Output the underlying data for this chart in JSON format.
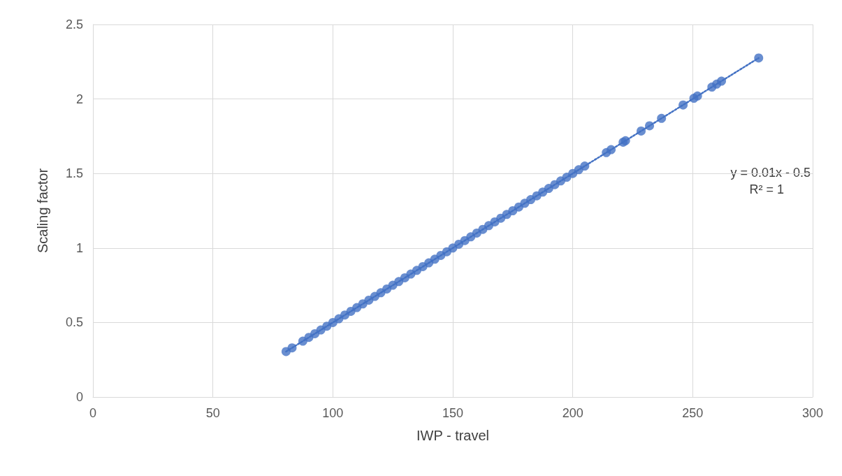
{
  "chart_data": {
    "type": "scatter",
    "xlabel": "IWP - travel",
    "ylabel": "Scaling factor",
    "xlim": [
      0,
      300
    ],
    "xticks": [
      0,
      50,
      100,
      150,
      200,
      250,
      300
    ],
    "ylim": [
      0,
      2.5
    ],
    "yticks": [
      0,
      0.5,
      1,
      1.5,
      2,
      2.5
    ],
    "grid": true,
    "annotations": [
      "y = 0.01x - 0.5",
      "R² = 1"
    ],
    "series": [
      {
        "color": "#4472c4",
        "marker": "circle",
        "x": [
          80.5,
          83,
          87.5,
          90,
          92.5,
          95,
          97.5,
          100,
          102.5,
          105,
          107.5,
          110,
          112.5,
          115,
          117.5,
          120,
          122.5,
          125,
          127.5,
          130,
          132.5,
          135,
          137.5,
          140,
          142.5,
          145,
          147.5,
          150,
          152.5,
          155,
          157.5,
          160,
          162.5,
          165,
          167.5,
          170,
          172.5,
          175,
          177.5,
          180,
          182.5,
          185,
          187.5,
          190,
          192.5,
          195,
          197.5,
          200,
          202.5,
          205,
          214,
          216,
          221,
          222,
          228.5,
          232,
          237,
          246,
          250.5,
          252,
          258,
          260,
          262,
          277.5
        ],
        "values": [
          0.305,
          0.33,
          0.375,
          0.4,
          0.425,
          0.45,
          0.475,
          0.5,
          0.525,
          0.55,
          0.575,
          0.6,
          0.625,
          0.65,
          0.675,
          0.7,
          0.725,
          0.75,
          0.775,
          0.8,
          0.825,
          0.85,
          0.875,
          0.9,
          0.925,
          0.95,
          0.975,
          1,
          1.025,
          1.05,
          1.075,
          1.1,
          1.125,
          1.15,
          1.175,
          1.2,
          1.225,
          1.25,
          1.275,
          1.3,
          1.325,
          1.35,
          1.375,
          1.4,
          1.425,
          1.45,
          1.475,
          1.5,
          1.525,
          1.55,
          1.64,
          1.66,
          1.71,
          1.72,
          1.785,
          1.82,
          1.87,
          1.96,
          2.005,
          2.02,
          2.08,
          2.1,
          2.12,
          2.275
        ]
      },
      {
        "type": "line",
        "color": "#4472c4",
        "marker": "none",
        "line_style": "dotted",
        "x": [
          80.5,
          277.5
        ],
        "values": [
          0.305,
          2.275
        ]
      }
    ]
  }
}
